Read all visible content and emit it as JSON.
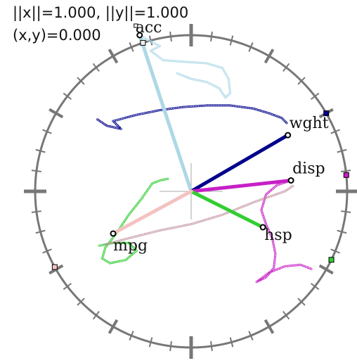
{
  "readout": {
    "norms": "||x||=1.000, ||y||=1.000",
    "dot": "(x,y)=0.000"
  },
  "chart_data": {
    "type": "biplot",
    "title": "",
    "grid": false,
    "unit_circle": true,
    "variables": [
      {
        "name": "acc",
        "x": -0.33,
        "y": 1.0,
        "color": "#add8e6",
        "marker_color": "#f0f0f0"
      },
      {
        "name": "wght",
        "x": 0.62,
        "y": 0.36,
        "color": "#00008b",
        "marker_color": "#00008b"
      },
      {
        "name": "disp",
        "x": 0.64,
        "y": 0.07,
        "color": "#c71fc7",
        "marker_color": "#c71fc7"
      },
      {
        "name": "hsp",
        "x": 0.46,
        "y": -0.23,
        "color": "#32cd32",
        "marker_color": "#32cd32"
      },
      {
        "name": "mpg",
        "x": -0.5,
        "y": -0.27,
        "color": "#f4c2c2",
        "marker_color": "#f4c2c2"
      }
    ],
    "trails": [
      {
        "name": "acc",
        "color": "#add8e6",
        "points": [
          [
            -0.33,
            1.0
          ],
          [
            -0.28,
            0.97
          ],
          [
            -0.2,
            0.93
          ],
          [
            -0.26,
            0.9
          ],
          [
            -0.18,
            0.84
          ],
          [
            -0.05,
            0.83
          ],
          [
            0.1,
            0.82
          ],
          [
            0.2,
            0.79
          ],
          [
            0.24,
            0.72
          ],
          [
            0.25,
            0.63
          ],
          [
            0.22,
            0.6
          ],
          [
            0.18,
            0.66
          ],
          [
            0.1,
            0.7
          ],
          [
            0.0,
            0.72
          ],
          [
            -0.1,
            0.76
          ]
        ]
      },
      {
        "name": "wght",
        "color": "#00008b",
        "points": [
          [
            -0.6,
            0.46
          ],
          [
            -0.54,
            0.42
          ],
          [
            -0.45,
            0.4
          ],
          [
            -0.5,
            0.45
          ],
          [
            -0.35,
            0.49
          ],
          [
            -0.2,
            0.52
          ],
          [
            -0.05,
            0.54
          ],
          [
            0.1,
            0.55
          ],
          [
            0.25,
            0.55
          ],
          [
            0.4,
            0.53
          ],
          [
            0.5,
            0.5
          ],
          [
            0.58,
            0.47
          ],
          [
            0.62,
            0.43
          ]
        ]
      },
      {
        "name": "disp",
        "color": "#c71fc7",
        "points": [
          [
            0.64,
            0.07
          ],
          [
            0.55,
            0.04
          ],
          [
            0.48,
            -0.02
          ],
          [
            0.45,
            -0.12
          ],
          [
            0.48,
            -0.21
          ],
          [
            0.52,
            -0.3
          ],
          [
            0.54,
            -0.4
          ],
          [
            0.53,
            -0.49
          ],
          [
            0.48,
            -0.55
          ],
          [
            0.42,
            -0.58
          ],
          [
            0.5,
            -0.52
          ],
          [
            0.6,
            -0.48
          ],
          [
            0.7,
            -0.47
          ],
          [
            0.78,
            -0.5
          ]
        ]
      },
      {
        "name": "hsp",
        "color": "#32cd32",
        "points": [
          [
            -0.15,
            0.08
          ],
          [
            -0.2,
            0.07
          ],
          [
            -0.25,
            0.05
          ],
          [
            -0.32,
            -0.05
          ],
          [
            -0.4,
            -0.15
          ],
          [
            -0.48,
            -0.27
          ],
          [
            -0.55,
            -0.36
          ],
          [
            -0.57,
            -0.43
          ],
          [
            -0.52,
            -0.46
          ],
          [
            -0.42,
            -0.44
          ],
          [
            -0.35,
            -0.38
          ],
          [
            -0.4,
            -0.33
          ],
          [
            -0.5,
            -0.33
          ],
          [
            -0.6,
            -0.35
          ]
        ]
      },
      {
        "name": "mpg",
        "color": "#c69aa6",
        "points": [
          [
            -0.55,
            -0.34
          ],
          [
            -0.4,
            -0.3
          ],
          [
            -0.2,
            -0.25
          ],
          [
            0.0,
            -0.21
          ],
          [
            0.2,
            -0.15
          ],
          [
            0.4,
            -0.07
          ],
          [
            0.6,
            0.0
          ],
          [
            0.66,
            0.04
          ]
        ]
      }
    ],
    "rim_markers": [
      {
        "name": "wght",
        "angle_deg": 30,
        "color": "#00008b"
      },
      {
        "name": "disp",
        "angle_deg": 6,
        "color": "#c71fc7"
      },
      {
        "name": "hsp",
        "angle_deg": -26,
        "color": "#32cd32"
      },
      {
        "name": "mpg",
        "angle_deg": -151,
        "color": "#f4c2c2"
      },
      {
        "name": "acc",
        "angle_deg": 108,
        "color": "#f0f0f0"
      }
    ]
  }
}
